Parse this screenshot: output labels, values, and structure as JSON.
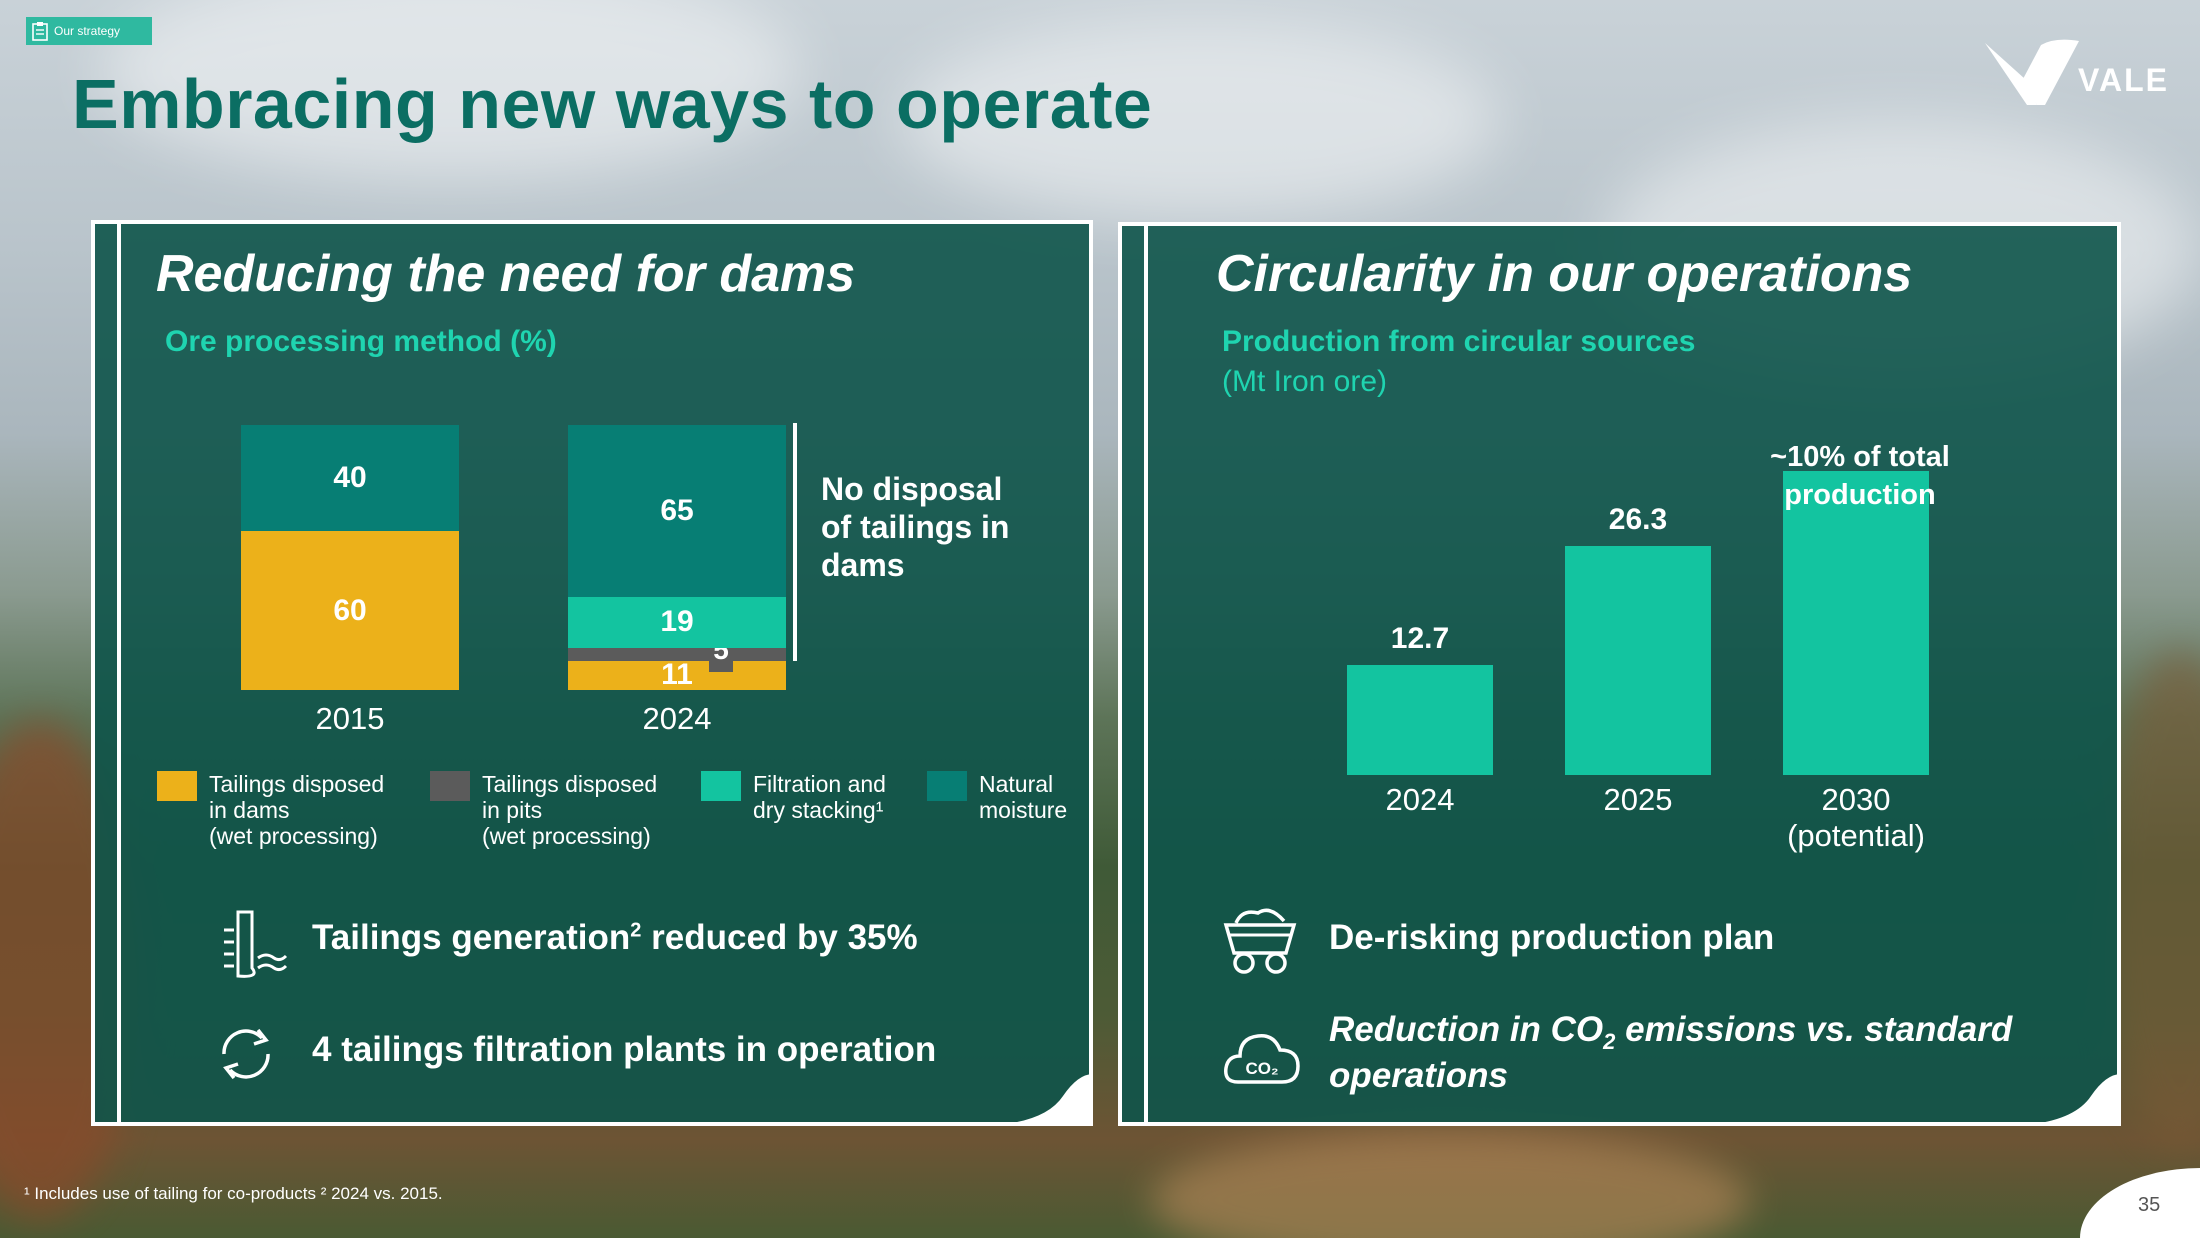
{
  "header": {
    "tag_label": "Our strategy",
    "title": "Embracing new ways to operate",
    "brand": "VALE"
  },
  "left_panel": {
    "title": "Reducing the need for dams",
    "subtitle": "Ore processing method (%)",
    "note": "No disposal of tailings in dams",
    "legend": [
      {
        "label_lines": [
          "Tailings disposed",
          "in dams",
          "(wet processing)"
        ],
        "color": "#ecb11a"
      },
      {
        "label_lines": [
          "Tailings disposed",
          "in pits",
          "(wet processing)"
        ],
        "color": "#5b5b5b"
      },
      {
        "label_lines": [
          "Filtration and",
          "dry stacking¹"
        ],
        "color": "#13c4a0"
      },
      {
        "label_lines": [
          "Natural",
          "moisture"
        ],
        "color": "#077e74"
      }
    ],
    "features": [
      {
        "icon": "tailings-icon",
        "text": "Tailings generation",
        "sup": "2",
        "text_after": " reduced by 35%"
      },
      {
        "icon": "recycle-arrows-icon",
        "text": "4 tailings filtration plants in operation"
      }
    ]
  },
  "chart_data": [
    {
      "type": "bar",
      "stacked": true,
      "categories": [
        "2015",
        "2024"
      ],
      "series": [
        {
          "name": "Tailings disposed in dams (wet processing)",
          "color": "#ecb11a",
          "values": [
            60,
            11
          ]
        },
        {
          "name": "Tailings disposed in pits (wet processing)",
          "color": "#5b5b5b",
          "values": [
            0,
            5
          ]
        },
        {
          "name": "Filtration and dry stacking¹",
          "color": "#13c4a0",
          "values": [
            0,
            19
          ]
        },
        {
          "name": "Natural moisture",
          "color": "#077e74",
          "values": [
            40,
            65
          ]
        }
      ],
      "labels": {
        "2015": [
          "60",
          "",
          "",
          "40"
        ],
        "2024": [
          "11",
          "5",
          "19",
          "65"
        ]
      },
      "title": "Ore processing method (%)",
      "ylim": [
        0,
        100
      ]
    },
    {
      "type": "bar",
      "categories": [
        "2024",
        "2025",
        "2030\n(potential)"
      ],
      "category_lines": [
        [
          "2024"
        ],
        [
          "2025"
        ],
        [
          "2030",
          "(potential)"
        ]
      ],
      "values": [
        12.7,
        26.3,
        35
      ],
      "value_labels": [
        "12.7",
        "26.3",
        ""
      ],
      "annotation": [
        "~10% of total",
        "production"
      ],
      "color": "#13c4a0",
      "title": "Production from circular sources",
      "ylabel": "(Mt Iron ore)"
    }
  ],
  "right_panel": {
    "title": "Circularity in our operations",
    "subtitle": "Production from circular sources",
    "unit": "(Mt Iron ore)",
    "features": [
      {
        "icon": "mine-cart-icon",
        "text": "De-risking production plan"
      },
      {
        "icon": "co2-cloud-icon",
        "line1_pre": "Reduction in CO",
        "line1_sub": "2",
        "line1_post": " emissions vs.  standard",
        "line2": "operations",
        "icon_text": "CO₂"
      }
    ]
  },
  "footer": {
    "footnote": "¹ Includes use of tailing for co-products ² 2024 vs. 2015.",
    "page_number": "35"
  }
}
